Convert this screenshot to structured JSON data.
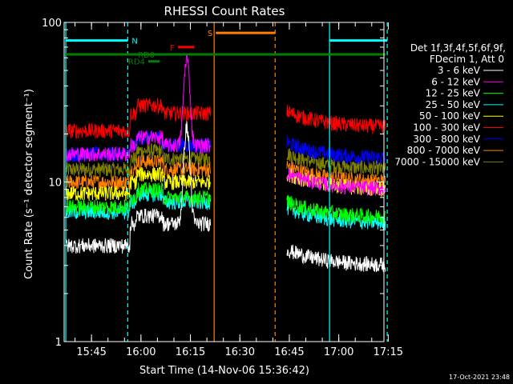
{
  "chart_data": {
    "type": "line",
    "title": "RHESSI Count Rates",
    "xlabel": "Start Time (14-Nov-06 15:36:42)",
    "ylabel": "Count Rate (s⁻¹ detector segment⁻¹)",
    "yscale": "log",
    "ylim": [
      1,
      100
    ],
    "y_ticks": [
      1,
      10,
      100
    ],
    "xlim_minutes": [
      0,
      97
    ],
    "x_ticks": [
      {
        "label": "15:45",
        "min": 8.3
      },
      {
        "label": "16:00",
        "min": 23.3
      },
      {
        "label": "16:15",
        "min": 38.3
      },
      {
        "label": "16:30",
        "min": 53.3
      },
      {
        "label": "16:45",
        "min": 68.3
      },
      {
        "label": "17:00",
        "min": 83.3
      },
      {
        "label": "17:15",
        "min": 98.3
      }
    ],
    "legend": {
      "position": "right",
      "header": [
        "Det 1f,3f,4f,5f,6f,9f,",
        "FDecim 1, Att 0"
      ]
    },
    "series": [
      {
        "name": "3 - 6 keV",
        "color": "#ffffff",
        "base": [
          4.0,
          5.5,
          3.0
        ],
        "peak": 22
      },
      {
        "name": "6 - 12 keV",
        "color": "#ff00ff",
        "base": [
          15,
          17,
          9
        ],
        "peak": 60
      },
      {
        "name": "12 - 25 keV",
        "color": "#00ff00",
        "base": [
          7.0,
          8.0,
          6.0
        ],
        "peak": 7.5
      },
      {
        "name": "25 - 50 keV",
        "color": "#00ffff",
        "base": [
          6.5,
          7.5,
          5.5
        ],
        "peak": 7
      },
      {
        "name": "50 - 100 keV",
        "color": "#ffff00",
        "base": [
          8.5,
          10,
          9
        ],
        "peak": 9.5
      },
      {
        "name": "100 - 300 keV",
        "color": "#ff0000",
        "base": [
          21,
          27,
          22
        ],
        "peak": 24
      },
      {
        "name": "300 - 800 keV",
        "color": "#0000ff",
        "base": [
          15,
          17,
          14
        ],
        "peak": 16
      },
      {
        "name": "800 - 7000 keV",
        "color": "#ff8000",
        "base": [
          10,
          12,
          10
        ],
        "peak": 11
      },
      {
        "name": "7000 - 15000 keV",
        "color": "#808000",
        "base": [
          12,
          14,
          12
        ],
        "peak": 13
      }
    ],
    "gaps_minutes": [
      [
        44.5,
        67.5
      ]
    ],
    "vertical_lines": [
      {
        "min": 0.5,
        "color": "#00ffff",
        "style": "solid"
      },
      {
        "min": 19.3,
        "color": "#00ffff",
        "style": "dashed"
      },
      {
        "min": 45.5,
        "color": "#ff8000",
        "style": "solid"
      },
      {
        "min": 64.0,
        "color": "#ff8000",
        "style": "dashed"
      },
      {
        "min": 80.5,
        "color": "#00ffff",
        "style": "solid"
      },
      {
        "min": 98.0,
        "color": "#00ffff",
        "style": "dashed"
      }
    ],
    "flags": [
      {
        "label": "N",
        "color": "#00ffff",
        "y": 77,
        "x_min": [
          0.5,
          19.3
        ],
        "label_side": "right"
      },
      {
        "label": "N",
        "color": "#00ffff",
        "y": 77,
        "x_min": [
          80.5,
          98.0
        ],
        "label_side": "none"
      },
      {
        "label": "S",
        "color": "#ff8000",
        "y": 86,
        "x_min": [
          46.0,
          64.0
        ],
        "label_side": "left"
      },
      {
        "label": "F",
        "color": "#ff0000",
        "y": 70,
        "x_min": [
          34.5,
          39.5
        ],
        "label_side": "left"
      },
      {
        "label": "RD0",
        "color": "#008000",
        "y": 63,
        "x_min": [
          0.5,
          97.5
        ],
        "label_side": "left-at",
        "label_min": 27.5
      },
      {
        "label": "RD4",
        "color": "#008000",
        "y": 57,
        "x_min": [
          25.5,
          29.0
        ],
        "label_side": "left"
      }
    ],
    "footer_date": "17-Oct-2021 23:48"
  },
  "colors": {
    "background": "#000000",
    "axes": "#ffffff"
  }
}
